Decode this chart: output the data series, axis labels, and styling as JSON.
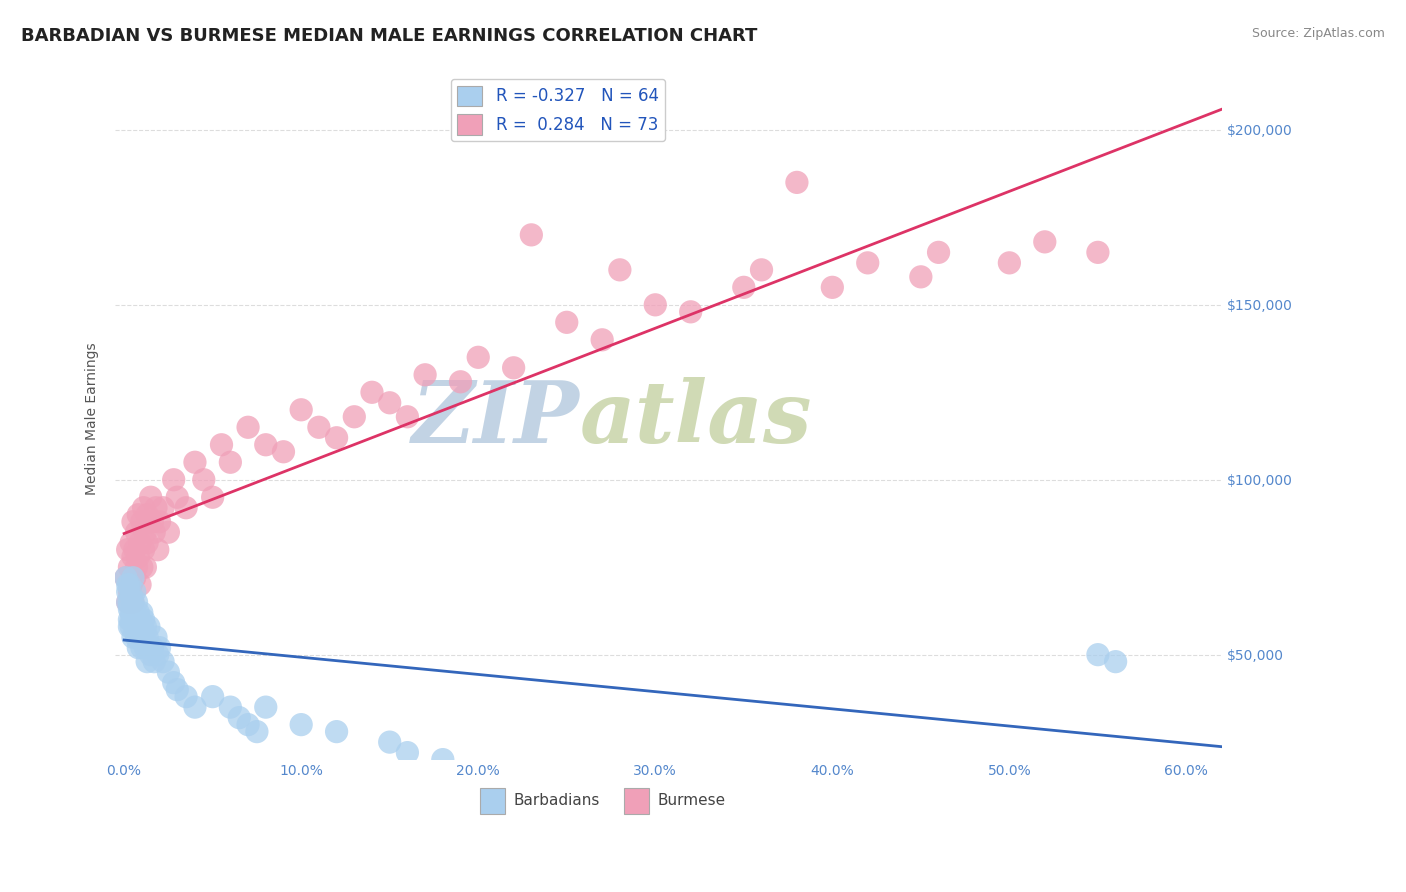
{
  "title": "BARBADIAN VS BURMESE MEDIAN MALE EARNINGS CORRELATION CHART",
  "source_text": "Source: ZipAtlas.com",
  "ylabel": "Median Male Earnings",
  "xlim": [
    -0.005,
    0.62
  ],
  "ylim": [
    20000,
    215000
  ],
  "xticks": [
    0.0,
    0.1,
    0.2,
    0.3,
    0.4,
    0.5,
    0.6
  ],
  "xticklabels": [
    "0.0%",
    "10.0%",
    "20.0%",
    "30.0%",
    "40.0%",
    "50.0%",
    "60.0%"
  ],
  "ytick_values": [
    50000,
    100000,
    150000,
    200000
  ],
  "background_color": "#ffffff",
  "grid_color": "#dddddd",
  "barbadian_color": "#aacfee",
  "burmese_color": "#f0a0b8",
  "barbadian_line_color": "#3366bb",
  "burmese_line_color": "#dd3366",
  "legend_R1": "-0.327",
  "legend_N1": "64",
  "legend_R2": "0.284",
  "legend_N2": "73",
  "watermark": "ZIPatlas",
  "watermark_color_zip": "#b0c8e0",
  "watermark_color_atlas": "#c8d8b0",
  "title_fontsize": 13,
  "tick_fontsize": 10,
  "barbadian_x": [
    0.001,
    0.002,
    0.002,
    0.003,
    0.003,
    0.003,
    0.004,
    0.004,
    0.004,
    0.005,
    0.005,
    0.005,
    0.005,
    0.006,
    0.006,
    0.006,
    0.007,
    0.007,
    0.007,
    0.008,
    0.008,
    0.008,
    0.009,
    0.009,
    0.01,
    0.01,
    0.01,
    0.011,
    0.011,
    0.012,
    0.012,
    0.013,
    0.013,
    0.014,
    0.014,
    0.015,
    0.016,
    0.017,
    0.018,
    0.019,
    0.02,
    0.022,
    0.025,
    0.028,
    0.03,
    0.035,
    0.04,
    0.05,
    0.06,
    0.065,
    0.07,
    0.075,
    0.08,
    0.1,
    0.12,
    0.15,
    0.16,
    0.18,
    0.002,
    0.003,
    0.003,
    0.004,
    0.55,
    0.56
  ],
  "barbadian_y": [
    72000,
    68000,
    65000,
    63000,
    70000,
    60000,
    67000,
    62000,
    58000,
    65000,
    60000,
    55000,
    72000,
    58000,
    62000,
    68000,
    60000,
    55000,
    65000,
    58000,
    62000,
    52000,
    60000,
    55000,
    58000,
    52000,
    62000,
    55000,
    60000,
    52000,
    58000,
    55000,
    48000,
    52000,
    58000,
    50000,
    52000,
    48000,
    55000,
    50000,
    52000,
    48000,
    45000,
    42000,
    40000,
    38000,
    35000,
    38000,
    35000,
    32000,
    30000,
    28000,
    35000,
    30000,
    28000,
    25000,
    22000,
    20000,
    70000,
    65000,
    58000,
    60000,
    50000,
    48000
  ],
  "burmese_x": [
    0.001,
    0.002,
    0.002,
    0.003,
    0.003,
    0.004,
    0.004,
    0.005,
    0.005,
    0.005,
    0.006,
    0.006,
    0.007,
    0.007,
    0.008,
    0.008,
    0.009,
    0.009,
    0.01,
    0.01,
    0.011,
    0.011,
    0.012,
    0.012,
    0.013,
    0.013,
    0.014,
    0.015,
    0.016,
    0.017,
    0.018,
    0.019,
    0.02,
    0.022,
    0.025,
    0.028,
    0.03,
    0.035,
    0.04,
    0.045,
    0.05,
    0.055,
    0.06,
    0.07,
    0.08,
    0.09,
    0.1,
    0.11,
    0.12,
    0.13,
    0.14,
    0.15,
    0.16,
    0.17,
    0.19,
    0.2,
    0.22,
    0.25,
    0.27,
    0.3,
    0.32,
    0.35,
    0.36,
    0.4,
    0.42,
    0.45,
    0.46,
    0.5,
    0.52,
    0.55,
    0.23,
    0.28,
    0.38
  ],
  "burmese_y": [
    72000,
    80000,
    65000,
    75000,
    68000,
    82000,
    70000,
    78000,
    65000,
    88000,
    72000,
    80000,
    85000,
    75000,
    90000,
    78000,
    82000,
    70000,
    88000,
    75000,
    92000,
    80000,
    85000,
    75000,
    90000,
    82000,
    88000,
    95000,
    88000,
    85000,
    92000,
    80000,
    88000,
    92000,
    85000,
    100000,
    95000,
    92000,
    105000,
    100000,
    95000,
    110000,
    105000,
    115000,
    110000,
    108000,
    120000,
    115000,
    112000,
    118000,
    125000,
    122000,
    118000,
    130000,
    128000,
    135000,
    132000,
    145000,
    140000,
    150000,
    148000,
    155000,
    160000,
    155000,
    162000,
    158000,
    165000,
    162000,
    168000,
    165000,
    170000,
    160000,
    185000
  ]
}
